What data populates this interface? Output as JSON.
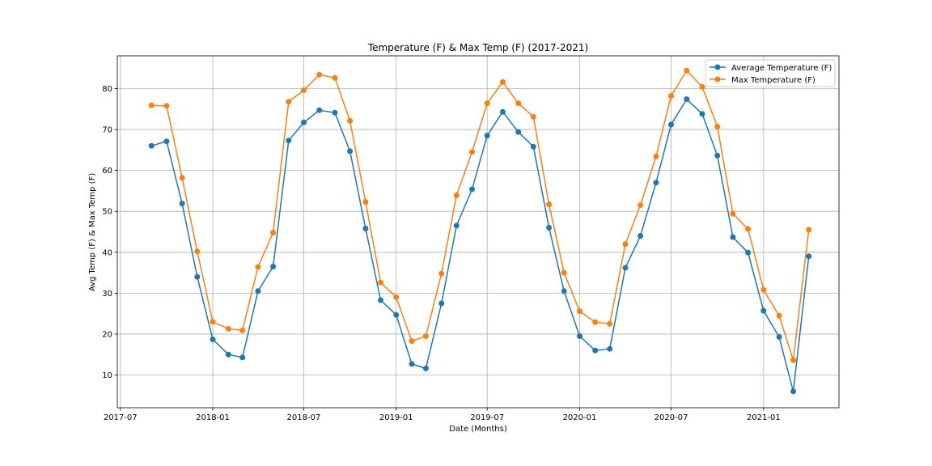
{
  "chart_data": {
    "type": "line",
    "title": "Temperature (F) & Max Temp (F) (2017-2021)",
    "xlabel": "Date (Months)",
    "ylabel": "Avg Temp (F) & Max Temp (F)",
    "x": [
      "2017-09",
      "2017-10",
      "2017-11",
      "2017-12",
      "2018-01",
      "2018-02",
      "2018-03",
      "2018-04",
      "2018-05",
      "2018-06",
      "2018-07",
      "2018-08",
      "2018-09",
      "2018-10",
      "2018-11",
      "2018-12",
      "2019-01",
      "2019-02",
      "2019-03",
      "2019-04",
      "2019-05",
      "2019-06",
      "2019-07",
      "2019-08",
      "2019-09",
      "2019-10",
      "2019-11",
      "2019-12",
      "2020-01",
      "2020-02",
      "2020-03",
      "2020-04",
      "2020-05",
      "2020-06",
      "2020-07",
      "2020-08",
      "2020-09",
      "2020-10",
      "2020-11",
      "2020-12",
      "2021-01",
      "2021-02",
      "2021-03",
      "2021-04"
    ],
    "series": [
      {
        "name": "Average Temperature (F)",
        "color": "#1f77b4",
        "values": [
          66.0,
          67.1,
          51.9,
          34.0,
          18.7,
          15.0,
          14.3,
          30.5,
          36.5,
          67.3,
          71.7,
          74.7,
          74.1,
          64.7,
          45.8,
          28.3,
          24.7,
          12.7,
          11.6,
          27.5,
          46.5,
          55.4,
          68.5,
          74.3,
          69.4,
          65.8,
          46.0,
          30.5,
          19.5,
          16.0,
          16.4,
          36.2,
          44.0,
          57.0,
          71.2,
          77.4,
          73.8,
          63.6,
          43.7,
          39.9,
          25.7,
          19.3,
          6.0,
          39.0
        ]
      },
      {
        "name": "Max Temperature (F)",
        "color": "#ff7f0e",
        "values": [
          75.9,
          75.8,
          58.2,
          40.2,
          23.0,
          21.3,
          20.9,
          36.4,
          44.8,
          76.8,
          79.6,
          83.4,
          82.6,
          72.1,
          52.3,
          32.6,
          29.0,
          18.3,
          19.5,
          34.8,
          53.9,
          64.5,
          76.4,
          81.6,
          76.4,
          73.1,
          51.7,
          35.0,
          25.6,
          22.9,
          22.5,
          42.0,
          51.5,
          63.4,
          78.2,
          84.4,
          80.4,
          70.7,
          49.4,
          45.7,
          30.8,
          24.5,
          13.6,
          45.5
        ]
      }
    ],
    "x_ticks": [
      "2017-07",
      "2018-01",
      "2018-07",
      "2019-01",
      "2019-07",
      "2020-01",
      "2020-07",
      "2021-01"
    ],
    "y_ticks": [
      10,
      20,
      30,
      40,
      50,
      60,
      70,
      80
    ],
    "ylim": [
      2,
      88
    ],
    "xlim": [
      "2017-06-25",
      "2021-05-31"
    ],
    "grid": true,
    "legend_position": "top-right"
  }
}
